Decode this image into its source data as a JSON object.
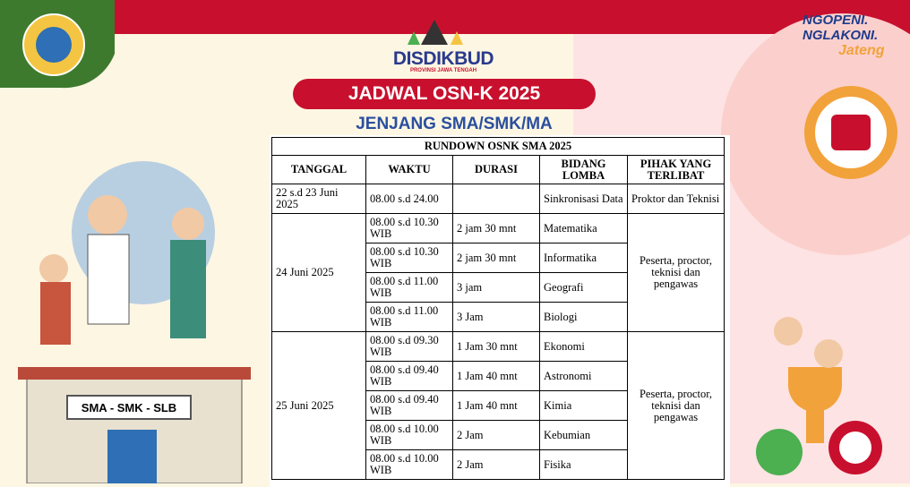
{
  "header": {
    "brand": "DISDIKBUD",
    "brand_sub": "PROVINSI JAWA TENGAH",
    "title": "JADWAL OSN-K 2025",
    "subtitle": "JENJANG SMA/SMK/MA",
    "slogan_1": "NGOPENI.",
    "slogan_2": "NGLAKONI.",
    "slogan_3": "Jateng",
    "school_sign": "SMA - SMK - SLB"
  },
  "table": {
    "title": "RUNDOWN OSNK SMA 2025",
    "columns": [
      "TANGGAL",
      "WAKTU",
      "DURASI",
      "BIDANG LOMBA",
      "PIHAK YANG TERLIBAT"
    ],
    "groups": [
      {
        "date": "22 s.d 23 Juni 2025",
        "pihak": "Proktor dan Teknisi",
        "sessions": [
          {
            "waktu": "08.00 s.d 24.00",
            "bidang": "Sinkronisasi Data"
          }
        ]
      },
      {
        "date": "24 Juni 2025",
        "pihak": "Peserta, proctor, teknisi dan pengawas",
        "sessions": [
          {
            "waktu": "08.00 s.d 10.30 WIB",
            "durasi": "2 jam 30 mnt",
            "bidang": "Matematika"
          },
          {
            "waktu": "08.00 s.d 10.30 WIB",
            "durasi": "2 jam 30 mnt",
            "bidang": "Informatika"
          },
          {
            "waktu": "08.00 s.d 11.00 WIB",
            "durasi": "3 jam",
            "bidang": "Geografi"
          },
          {
            "waktu": "08.00 s.d 11.00 WIB",
            "durasi": "3 Jam",
            "bidang": "Biologi"
          }
        ]
      },
      {
        "date": "25 Juni 2025",
        "pihak": "Peserta, proctor, teknisi dan pengawas",
        "sessions": [
          {
            "waktu": "08.00 s.d 09.30 WIB",
            "durasi": "1 Jam 30 mnt",
            "bidang": "Ekonomi"
          },
          {
            "waktu": "08.00 s.d 09.40 WIB",
            "durasi": "1 Jam 40 mnt",
            "bidang": "Astronomi"
          },
          {
            "waktu": "08.00 s.d 09.40 WIB",
            "durasi": "1 Jam 40 mnt",
            "bidang": "Kimia"
          },
          {
            "waktu": "08.00 s.d 10.00 WIB",
            "durasi": "2 Jam",
            "bidang": "Kebumian"
          },
          {
            "waktu": "08.00 s.d 10.00 WIB",
            "durasi": "2 Jam",
            "bidang": "Fisika"
          }
        ]
      }
    ]
  }
}
